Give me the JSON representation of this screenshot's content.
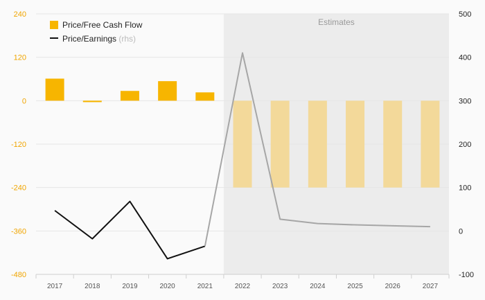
{
  "chart_data": {
    "type": "bar",
    "title": "",
    "categories": [
      "2017",
      "2018",
      "2019",
      "2020",
      "2021",
      "2022",
      "2023",
      "2024",
      "2025",
      "2026",
      "2027"
    ],
    "estimate_start_index": 5,
    "estimates_label": "Estimates",
    "series": [
      {
        "name": "Price/Free Cash Flow",
        "type": "bar",
        "axis": "left",
        "values": [
          61,
          -4,
          27,
          54,
          23,
          -240,
          -240,
          -240,
          -240,
          -240,
          -240
        ]
      },
      {
        "name": "Price/Earnings",
        "name_suffix": "(rhs)",
        "type": "line",
        "axis": "right",
        "values": [
          47,
          -18,
          68,
          -64,
          -35,
          410,
          27,
          17,
          14,
          12,
          10
        ]
      }
    ],
    "left_axis": {
      "ylim": [
        -480,
        240
      ],
      "ticks": [
        240,
        120,
        0,
        -120,
        -240,
        -360,
        -480
      ],
      "tick_labels": [
        "240",
        "120",
        "0",
        "-120",
        "-240",
        "-360",
        "-480"
      ]
    },
    "right_axis": {
      "ylim": [
        -100,
        500
      ],
      "ticks": [
        500,
        400,
        300,
        200,
        100,
        0,
        -100
      ],
      "tick_labels": [
        "500",
        "400",
        "300",
        "200",
        "100",
        "0",
        "-100"
      ]
    },
    "colors": {
      "bar_actual": "#f7b500",
      "bar_estimate": "#f3d99a",
      "line_actual": "#111111",
      "line_estimate": "#a6a6a6",
      "estimate_bg": "#ececec",
      "grid": "#e6e6e6"
    },
    "legend_position": "top-left",
    "grid": true
  }
}
